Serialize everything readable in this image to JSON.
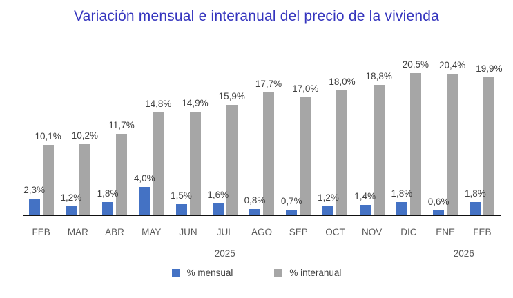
{
  "title": "Variación mensual e interanual del precio de la vivienda",
  "colors": {
    "title": "#3535BE",
    "mensual": "#4472C4",
    "interanual": "#A6A6A6",
    "axis": "#111111",
    "value_label": "#404040",
    "category_label": "#595959"
  },
  "chart_data": {
    "type": "bar",
    "title": "Variación mensual e interanual del precio de la vivienda",
    "categories": [
      "FEB",
      "MAR",
      "ABR",
      "MAY",
      "JUN",
      "JUL",
      "AGO",
      "SEP",
      "OCT",
      "NOV",
      "DIC",
      "ENE",
      "FEB"
    ],
    "year_row": [
      {
        "label": "2025",
        "from": 0,
        "to": 10
      },
      {
        "label": "2026",
        "from": 11,
        "to": 12
      }
    ],
    "series": [
      {
        "name": "% mensual",
        "color": "#4472C4",
        "values": [
          2.3,
          1.2,
          1.8,
          4.0,
          1.5,
          1.6,
          0.8,
          0.7,
          1.2,
          1.4,
          1.8,
          0.6,
          1.8
        ],
        "labels": [
          "2,3%",
          "1,2%",
          "1,8%",
          "4,0%",
          "1,5%",
          "1,6%",
          "0,8%",
          "0,7%",
          "1,2%",
          "1,4%",
          "1,8%",
          "0,6%",
          "1,8%"
        ]
      },
      {
        "name": "% interanual",
        "color": "#A6A6A6",
        "values": [
          10.1,
          10.2,
          11.7,
          14.8,
          14.9,
          15.9,
          17.7,
          17.0,
          18.0,
          18.8,
          20.5,
          20.4,
          19.9
        ],
        "labels": [
          "10,1%",
          "10,2%",
          "11,7%",
          "14,8%",
          "14,9%",
          "15,9%",
          "17,7%",
          "17,0%",
          "18,0%",
          "18,8%",
          "20,5%",
          "20,4%",
          "19,9%"
        ]
      }
    ],
    "xlabel": "",
    "ylabel": "",
    "ylim": [
      0,
      22
    ],
    "grid": false,
    "y_axis_shown": false,
    "value_labels_shown": true,
    "decimal_separator": ",",
    "legend_position": "bottom"
  }
}
